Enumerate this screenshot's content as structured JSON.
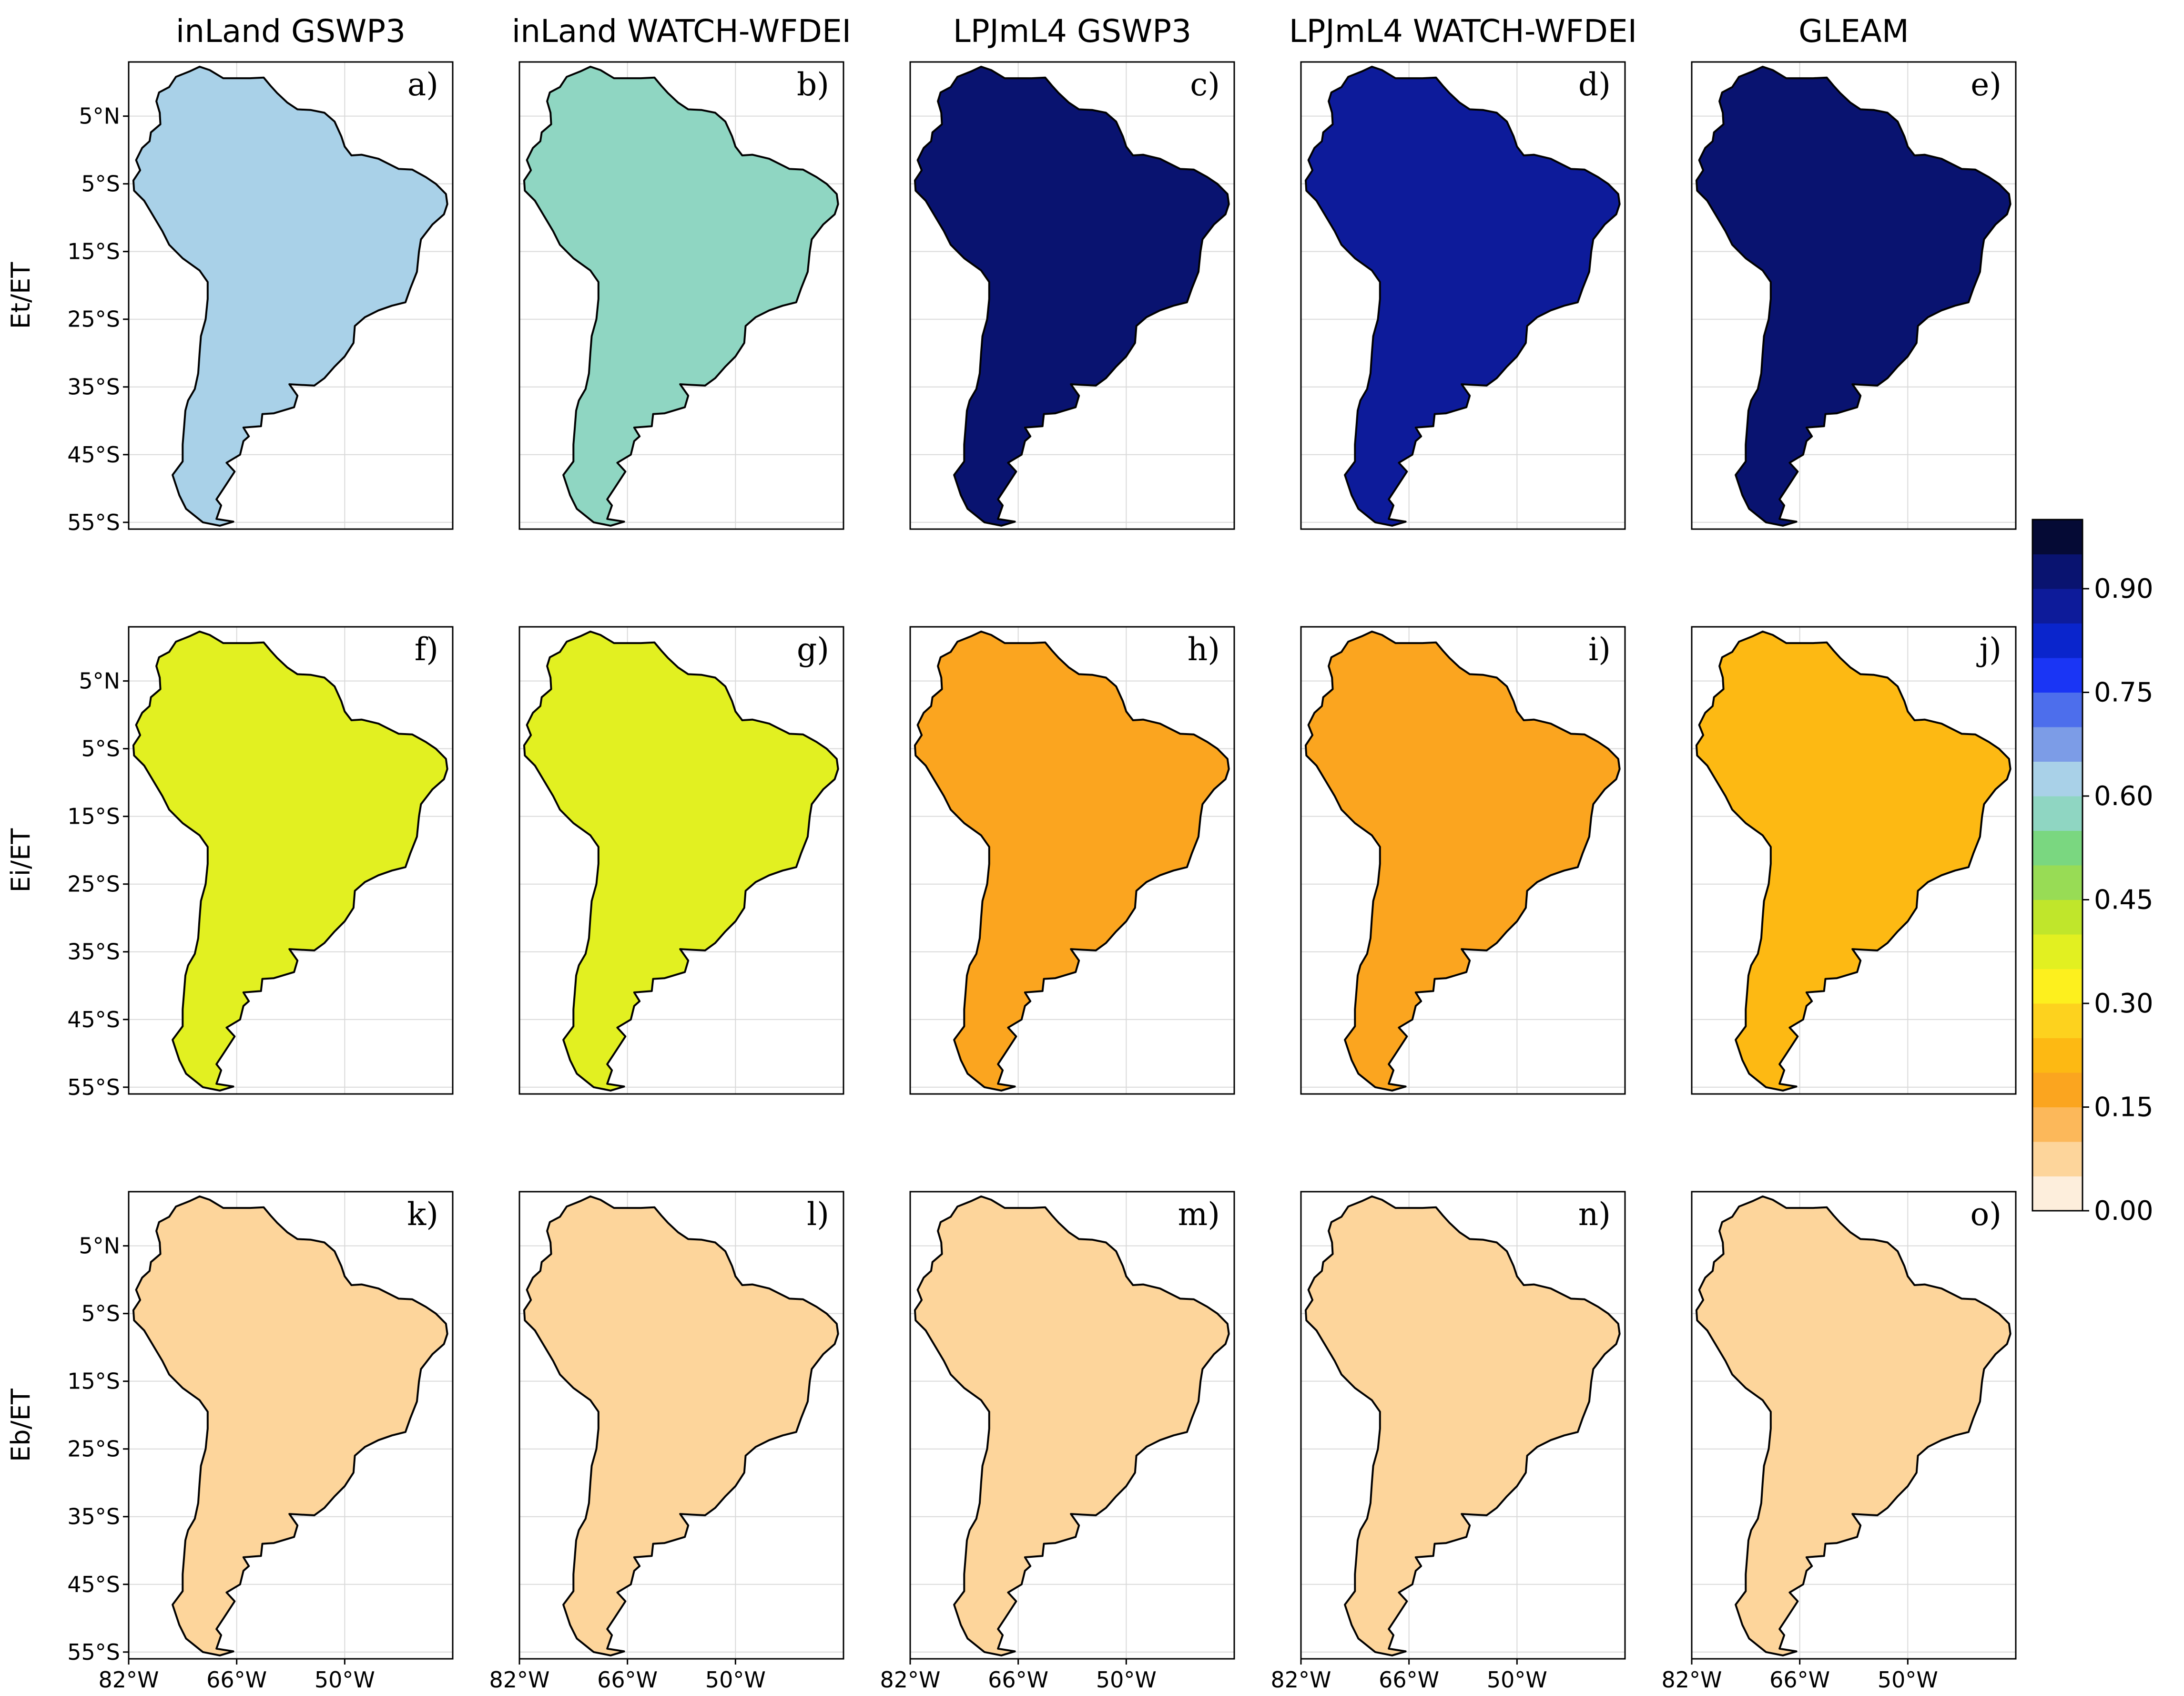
{
  "figure": {
    "columns": [
      "inLand GSWP3",
      "inLand WATCH-WFDEI",
      "LPJmL4 GSWP3",
      "LPJmL4 WATCH-WFDEI",
      "GLEAM"
    ],
    "rows": [
      "Et/ET",
      "Ei/ET",
      "Eb/ET"
    ],
    "panel_labels": [
      [
        "a)",
        "b)",
        "c)",
        "d)",
        "e)"
      ],
      [
        "f)",
        "g)",
        "h)",
        "i)",
        "j)"
      ],
      [
        "k)",
        "l)",
        "m)",
        "n)",
        "o)"
      ]
    ],
    "lat_ticks": [
      "5°N",
      "5°S",
      "15°S",
      "25°S",
      "35°S",
      "45°S",
      "55°S"
    ],
    "lon_ticks": [
      "82°W",
      "66°W",
      "50°W"
    ],
    "panel_values": [
      [
        0.62,
        0.58,
        0.9,
        0.89,
        0.92
      ],
      [
        0.35,
        0.36,
        0.18,
        0.18,
        0.22
      ],
      [
        0.08,
        0.08,
        0.05,
        0.05,
        0.06
      ]
    ]
  },
  "colorbar": {
    "tick_labels": [
      "0.90",
      "0.75",
      "0.60",
      "0.45",
      "0.30",
      "0.15",
      "0.00"
    ],
    "tick_values": [
      0.9,
      0.75,
      0.6,
      0.45,
      0.3,
      0.15,
      0.0
    ],
    "min": 0.0,
    "max": 1.0,
    "colors": [
      "#fdeedc",
      "#fdd59b",
      "#fcb85a",
      "#fba51f",
      "#fdb913",
      "#fdd21e",
      "#fdf01e",
      "#e2f021",
      "#c0e62b",
      "#98dc55",
      "#7ad780",
      "#8fd6c2",
      "#a9d1e8",
      "#7c9ce7",
      "#4d6eec",
      "#1a35f5",
      "#0a25cc",
      "#0d1b9a",
      "#091370",
      "#050a35"
    ]
  }
}
